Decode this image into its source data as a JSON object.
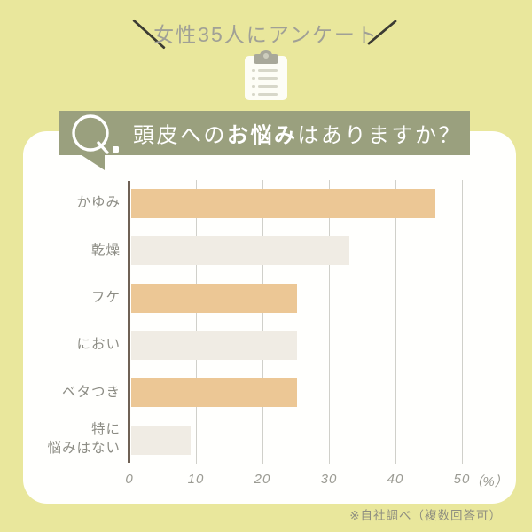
{
  "header": {
    "title": "女性35人にアンケート"
  },
  "icons": {
    "clipboard": "clipboard-survey-icon",
    "q_mark": "Q."
  },
  "question": {
    "q_label": "Q.",
    "prefix": "頭皮への",
    "bold": "お悩み",
    "suffix": "はありますか？"
  },
  "chart_data": {
    "type": "bar",
    "orientation": "horizontal",
    "title": "頭皮へのお悩みはありますか？",
    "subtitle": "女性35人にアンケート",
    "categories": [
      "かゆみ",
      "乾燥",
      "フケ",
      "におい",
      "ベタつき",
      "特に\n悩みはない"
    ],
    "values": [
      46,
      33,
      25,
      25,
      25,
      9
    ],
    "unit": "%",
    "xlabel": "（%）",
    "xlim": [
      0,
      50
    ],
    "x_ticks": [
      0,
      10,
      20,
      30,
      40,
      50
    ],
    "grid": true,
    "legend": "none",
    "bar_colors": [
      "#ecc795",
      "#f0ece4",
      "#ecc795",
      "#f0ece4",
      "#ecc795",
      "#f0ece4"
    ]
  },
  "footer": {
    "note": "※自社調べ（複数回答可）"
  },
  "colors": {
    "background": "#e9e79c",
    "panel": "#fffffd",
    "banner": "#9aa07e",
    "bar_primary": "#ecc795",
    "bar_secondary": "#f0ece4",
    "axis": "#6f6154",
    "gridline": "#d0d0ca",
    "label_text": "#8d8d85",
    "tick_text": "#9b9b93",
    "header_text": "#a0a096",
    "slash": "#3c3c34",
    "footer_text": "#8e8e80",
    "question_text": "#ffffff"
  }
}
